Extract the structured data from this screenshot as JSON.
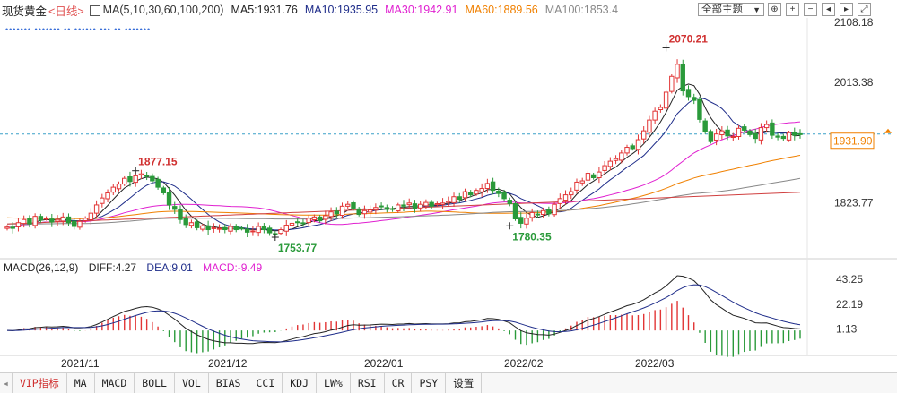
{
  "header": {
    "title": "现货黄金",
    "period": "<日线>",
    "ma_set": "MA(5,10,30,60,100,200)",
    "ma5": "MA5:1931.76",
    "ma10": "MA10:1935.95",
    "ma30": "MA30:1942.91",
    "ma60": "MA60:1889.56",
    "ma100": "MA100:1853.4",
    "theme_select": "全部主题",
    "colors": {
      "ma5": "#222222",
      "ma10": "#1f2d8a",
      "ma30": "#e020d0",
      "ma60": "#f08000",
      "ma100": "#888888",
      "ma200": "#d04040"
    }
  },
  "dot_markers": "•••••••    •••••••   ••   ••••••    •••   ••     •••••••",
  "price_axis": [
    "2108.18",
    "2013.38",
    "1823.77"
  ],
  "current_price": "1931.90",
  "annotations": {
    "high": "2070.21",
    "peak1": "1877.15",
    "low1": "1753.77",
    "low2": "1780.35"
  },
  "macd": {
    "title": "MACD(26,12,9)",
    "diff": "DIFF:4.27",
    "dea": "DEA:9.01",
    "macd": "MACD:-9.49",
    "axis": [
      "43.25",
      "22.19",
      "1.13"
    ]
  },
  "x_axis": [
    "2021/11",
    "2021/12",
    "2022/01",
    "2022/02",
    "2022/03"
  ],
  "tabs": [
    "VIP指标",
    "MA",
    "MACD",
    "BOLL",
    "VOL",
    "BIAS",
    "CCI",
    "KDJ",
    "LW%",
    "RSI",
    "CR",
    "PSY",
    "设置"
  ],
  "chart_data": {
    "type": "candlestick",
    "title": "现货黄金 <日线>",
    "ylim": [
      1745,
      2108.18
    ],
    "x_ticks": [
      "2021/11",
      "2021/12",
      "2022/01",
      "2022/02",
      "2022/03"
    ],
    "series": [
      {
        "name": "MA5",
        "last": 1931.76
      },
      {
        "name": "MA10",
        "last": 1935.95
      },
      {
        "name": "MA30",
        "last": 1942.91
      },
      {
        "name": "MA60",
        "last": 1889.56
      },
      {
        "name": "MA100",
        "last": 1853.4
      }
    ],
    "close": [
      1785,
      1783,
      1792,
      1797,
      1790,
      1802,
      1796,
      1799,
      1793,
      1797,
      1801,
      1792,
      1786,
      1794,
      1799,
      1807,
      1820,
      1831,
      1839,
      1848,
      1853,
      1862,
      1857,
      1866,
      1869,
      1865,
      1858,
      1848,
      1839,
      1820,
      1813,
      1797,
      1789,
      1792,
      1784,
      1787,
      1781,
      1784,
      1783,
      1781,
      1786,
      1781,
      1783,
      1777,
      1779,
      1786,
      1781,
      1776,
      1774,
      1781,
      1788,
      1791,
      1793,
      1791,
      1799,
      1801,
      1795,
      1803,
      1809,
      1806,
      1818,
      1821,
      1815,
      1805,
      1811,
      1812,
      1816,
      1817,
      1813,
      1813,
      1820,
      1818,
      1823,
      1814,
      1821,
      1824,
      1818,
      1822,
      1823,
      1826,
      1833,
      1829,
      1841,
      1836,
      1843,
      1846,
      1854,
      1843,
      1838,
      1830,
      1822,
      1798,
      1791,
      1799,
      1808,
      1805,
      1811,
      1806,
      1821,
      1830,
      1836,
      1841,
      1856,
      1858,
      1870,
      1863,
      1872,
      1882,
      1889,
      1893,
      1902,
      1911,
      1909,
      1923,
      1937,
      1954,
      1968,
      1974,
      1998,
      2023,
      2042,
      2000,
      1991,
      1985,
      1955,
      1936,
      1920,
      1932,
      1937,
      1929,
      1928,
      1941,
      1938,
      1931,
      1925,
      1942,
      1947,
      1930,
      1927,
      1925,
      1934,
      1930,
      1931.9
    ],
    "ma200_range": [
      1790,
      1840
    ],
    "macd_axis": [
      43.25,
      22.19,
      1.13
    ],
    "annotations": [
      {
        "label": "2070.21",
        "type": "high"
      },
      {
        "label": "1877.15",
        "type": "local high"
      },
      {
        "label": "1753.77",
        "type": "low"
      },
      {
        "label": "1780.35",
        "type": "low"
      }
    ]
  }
}
